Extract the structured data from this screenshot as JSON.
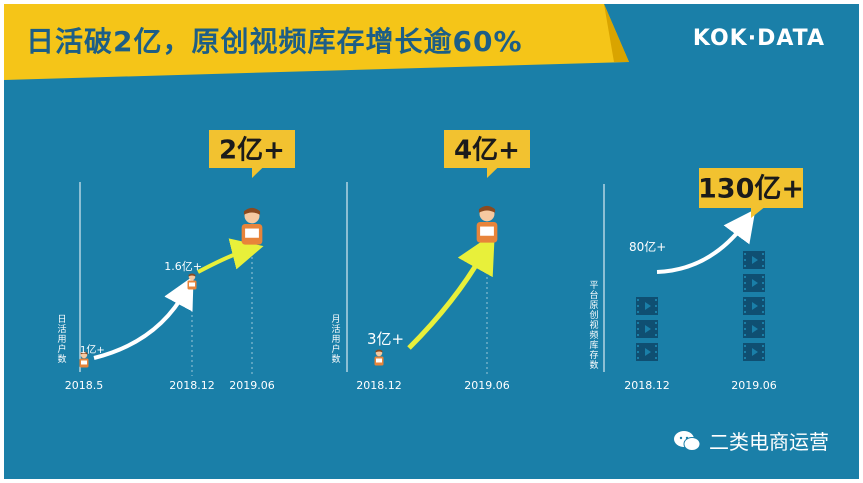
{
  "title": "日活破2亿，原创视频库存增长逾60%",
  "logo": "KOK·DATA",
  "watermark": "二类电商运营",
  "colors": {
    "background": "#1a7fa8",
    "banner": "#f5c518",
    "title_text": "#1d5e86",
    "arrow_white": "#ffffff",
    "arrow_yellow": "#e8f03a",
    "callout": "#f2c230",
    "person_shirt": "#e8843a",
    "film": "#0f4f72"
  },
  "chart_data": [
    {
      "type": "line",
      "ylabel": "日活用户数",
      "categories": [
        "2018.5",
        "2018.12",
        "2019.06"
      ],
      "values": [
        1,
        1.6,
        2
      ],
      "unit": "亿",
      "point_labels": [
        "1亿+",
        "1.6亿+",
        ""
      ],
      "callout": "2亿+"
    },
    {
      "type": "line",
      "ylabel": "月活用户数",
      "categories": [
        "2018.12",
        "2019.06"
      ],
      "values": [
        3,
        4
      ],
      "unit": "亿",
      "point_labels": [
        "3亿+",
        ""
      ],
      "callout": "4亿+"
    },
    {
      "type": "bar",
      "ylabel": "平台原创视频库存数",
      "categories": [
        "2018.12",
        "2019.06"
      ],
      "values": [
        80,
        130
      ],
      "unit": "亿",
      "point_labels": [
        "80亿+",
        ""
      ],
      "callout": "130亿+"
    }
  ]
}
